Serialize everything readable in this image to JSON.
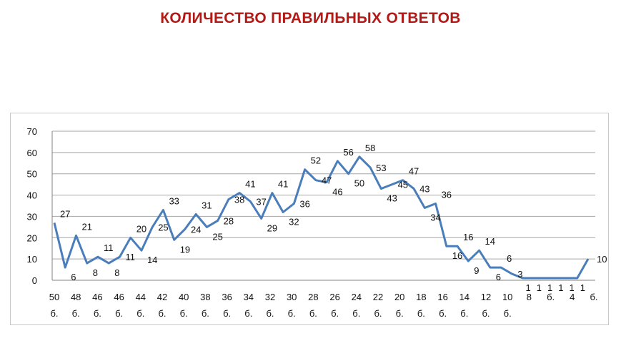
{
  "title": "КОЛИЧЕСТВО ПРАВИЛЬНЫХ ОТВЕТОВ",
  "colors": {
    "title": "#b11a17",
    "series": "#4a7ebb",
    "grid": "#a6a6a6",
    "axis": "#808080"
  },
  "chart_data": {
    "type": "line",
    "title": "КОЛИЧЕСТВО ПРАВИЛЬНЫХ ОТВЕТОВ",
    "xlabel": "",
    "ylabel": "",
    "ylim": [
      0,
      70
    ],
    "yticks": [
      0,
      10,
      20,
      30,
      40,
      50,
      60,
      70
    ],
    "grid": true,
    "legend": "none",
    "x_tick_labels": [
      {
        "top": "50",
        "bottom": "б."
      },
      {
        "top": "48",
        "bottom": "б."
      },
      {
        "top": "46",
        "bottom": "б."
      },
      {
        "top": "46",
        "bottom": "б."
      },
      {
        "top": "44",
        "bottom": "б."
      },
      {
        "top": "42",
        "bottom": "б."
      },
      {
        "top": "40",
        "bottom": "б."
      },
      {
        "top": "38",
        "bottom": "б."
      },
      {
        "top": "36",
        "bottom": "б."
      },
      {
        "top": "34",
        "bottom": "б."
      },
      {
        "top": "32",
        "bottom": "б."
      },
      {
        "top": "30",
        "bottom": "б."
      },
      {
        "top": "28",
        "bottom": "б."
      },
      {
        "top": "26",
        "bottom": "б."
      },
      {
        "top": "24",
        "bottom": "б."
      },
      {
        "top": "22",
        "bottom": "б."
      },
      {
        "top": "20",
        "bottom": "б."
      },
      {
        "top": "18",
        "bottom": "б."
      },
      {
        "top": "16",
        "bottom": "б."
      },
      {
        "top": "14",
        "bottom": "б."
      },
      {
        "top": "12",
        "bottom": "б."
      },
      {
        "top": "10",
        "bottom": "б."
      },
      {
        "top": "8",
        "bottom": ""
      },
      {
        "top": "б.",
        "bottom": ""
      },
      {
        "top": "4",
        "bottom": ""
      },
      {
        "top": "б.",
        "bottom": ""
      },
      {
        "top": "1",
        "bottom": ""
      },
      {
        "top": "б.",
        "bottom": ""
      }
    ],
    "x_tick_top_line": "8 б. 4 б. 1 б.",
    "series": [
      {
        "values": [
          27,
          6,
          21,
          8,
          11,
          8,
          11,
          20,
          14,
          25,
          33,
          19,
          24,
          31,
          25,
          28,
          38,
          41,
          37,
          29,
          41,
          32,
          36,
          52,
          47,
          46,
          56,
          50,
          58,
          53,
          43,
          45,
          47,
          43,
          34,
          36,
          16,
          16,
          9,
          14,
          6,
          6,
          3,
          1,
          1,
          1,
          1,
          1,
          1,
          10
        ]
      }
    ]
  }
}
